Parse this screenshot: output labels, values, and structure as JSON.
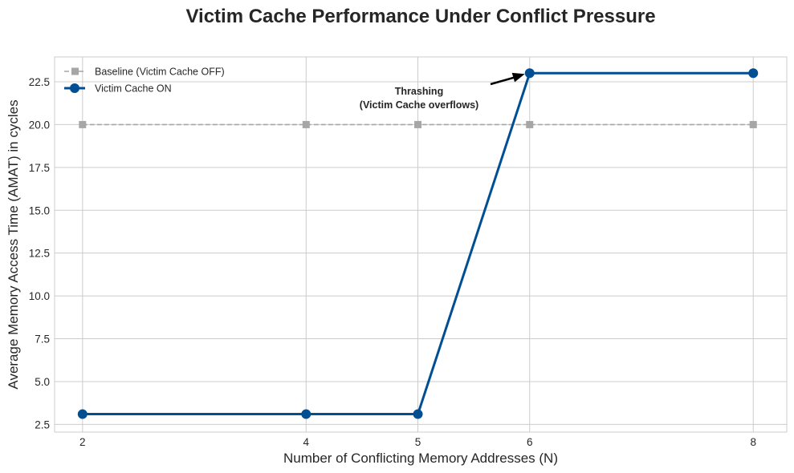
{
  "chart_data": {
    "type": "line",
    "title": "Victim Cache Performance Under Conflict Pressure",
    "xlabel": "Number of Conflicting Memory Addresses (N)",
    "ylabel": "Average Memory Access Time (AMAT) in cycles",
    "x": [
      2,
      4,
      5,
      6,
      8
    ],
    "xticks": [
      "2",
      "4",
      "5",
      "6",
      "8"
    ],
    "xlim": [
      1.75,
      8.3
    ],
    "ylim": [
      2.05,
      23.95
    ],
    "yticks": [
      "2.5",
      "5.0",
      "7.5",
      "10.0",
      "12.5",
      "15.0",
      "17.5",
      "20.0",
      "22.5"
    ],
    "grid": true,
    "legend_position": "top-left",
    "series": [
      {
        "name": "Baseline (Victim Cache OFF)",
        "values": [
          20,
          20,
          20,
          20,
          20
        ],
        "color": "#a6a6a6",
        "style": "dashed",
        "marker": "square"
      },
      {
        "name": "Victim Cache ON",
        "values": [
          3.1,
          3.1,
          3.1,
          23,
          23
        ],
        "color": "#004f93",
        "style": "solid",
        "marker": "circle"
      }
    ],
    "annotations": [
      {
        "lines": [
          "Thrashing",
          "(Victim Cache overflows)"
        ],
        "point_to": {
          "x": 6,
          "y": 23
        }
      }
    ]
  }
}
